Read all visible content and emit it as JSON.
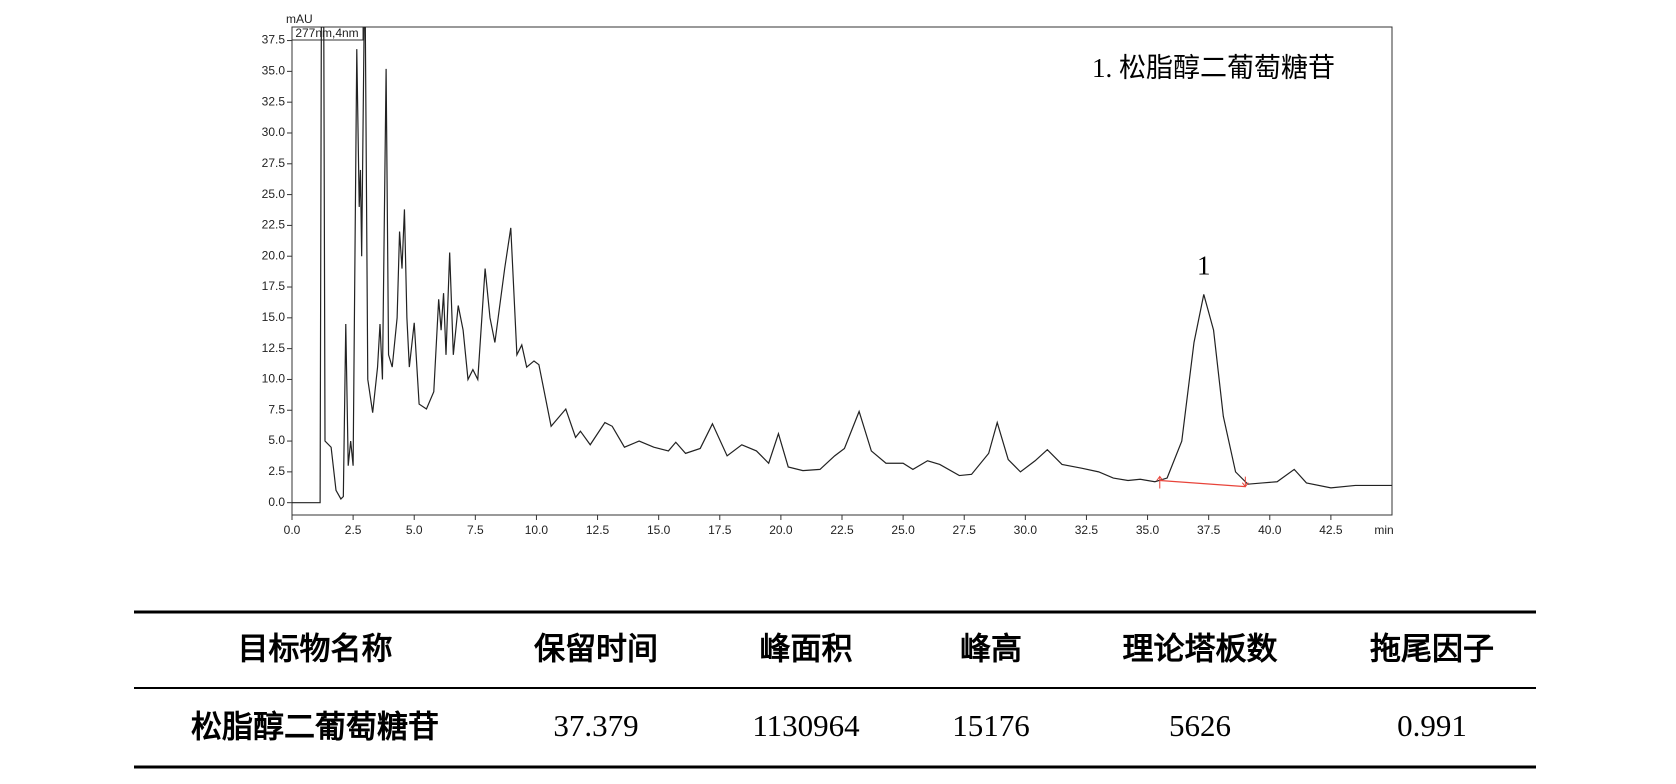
{
  "chart_data": {
    "type": "line",
    "y_label": "mAU",
    "x_label": "min",
    "detector": "277nm,4nm",
    "annotation": "1. 松脂醇二葡萄糖苷",
    "peak_label": "1",
    "peak_label_x": 37.3,
    "peak_label_y": 19.0,
    "color": "#222222",
    "x": [
      0,
      1.15,
      1.2,
      1.3,
      1.35,
      1.6,
      1.8,
      2.0,
      2.1,
      2.2,
      2.3,
      2.4,
      2.5,
      2.65,
      2.75,
      2.8,
      2.85,
      2.95,
      3.0,
      3.1,
      3.3,
      3.5,
      3.6,
      3.7,
      3.85,
      3.95,
      4.1,
      4.3,
      4.4,
      4.5,
      4.6,
      4.7,
      4.8,
      5.0,
      5.2,
      5.5,
      5.8,
      6.0,
      6.1,
      6.2,
      6.3,
      6.45,
      6.6,
      6.8,
      7.0,
      7.2,
      7.4,
      7.6,
      7.9,
      8.1,
      8.3,
      8.7,
      8.95,
      9.2,
      9.4,
      9.6,
      9.9,
      10.1,
      10.6,
      11.2,
      11.6,
      11.8,
      12.2,
      12.8,
      13.1,
      13.6,
      14.2,
      14.8,
      15.4,
      15.7,
      16.1,
      16.7,
      17.2,
      17.8,
      18.4,
      19.0,
      19.5,
      19.9,
      20.3,
      20.9,
      21.6,
      22.2,
      22.6,
      23.2,
      23.7,
      24.3,
      25.0,
      25.4,
      26.0,
      26.5,
      27.3,
      27.8,
      28.5,
      28.85,
      29.3,
      29.8,
      30.4,
      30.9,
      31.5,
      32.3,
      33.0,
      33.6,
      34.2,
      34.7,
      35.3,
      35.8,
      36.4,
      36.9,
      37.3,
      37.7,
      38.1,
      38.6,
      39.1,
      39.7,
      40.3,
      41.0,
      41.5,
      42.5,
      43.5,
      45
    ],
    "values": [
      0.0,
      0.0,
      38.6,
      38.6,
      5,
      4.5,
      1.0,
      0.3,
      0.5,
      14.5,
      3,
      5,
      3,
      36.8,
      24,
      27,
      20,
      38.6,
      38.6,
      10,
      7.3,
      11,
      14.5,
      10,
      35.2,
      12,
      11,
      15,
      22,
      19,
      23.8,
      15,
      11,
      14.6,
      8,
      7.6,
      9,
      16.5,
      14,
      17,
      12,
      20.3,
      12,
      16,
      14,
      10,
      10.8,
      10,
      19,
      15,
      13,
      19,
      22.3,
      12,
      12.8,
      11,
      11.5,
      11.2,
      6.2,
      7.6,
      5.3,
      5.8,
      4.7,
      6.5,
      6.2,
      4.5,
      5.0,
      4.5,
      4.2,
      4.9,
      4.0,
      4.4,
      6.4,
      3.8,
      4.7,
      4.2,
      3.2,
      5.6,
      2.9,
      2.6,
      2.7,
      3.8,
      4.4,
      7.4,
      4.2,
      3.2,
      3.2,
      2.7,
      3.4,
      3.1,
      2.2,
      2.3,
      4,
      6.5,
      3.5,
      2.5,
      3.4,
      4.3,
      3.1,
      2.8,
      2.5,
      2.0,
      1.8,
      1.9,
      1.7,
      2.0,
      5,
      13,
      16.9,
      14,
      7,
      2.5,
      1.5,
      1.6,
      1.7,
      2.7,
      1.6,
      1.2,
      1.4,
      1.4
    ],
    "baseline": {
      "x": [
        35.5,
        39.0
      ],
      "y": [
        1.8,
        1.3
      ],
      "color": "#e8443a"
    },
    "xlim": [
      0,
      45
    ],
    "ylim": [
      -1,
      38.6
    ],
    "xticks": [
      {
        "value": 0,
        "label": "0.0"
      },
      2.5,
      {
        "value": 5,
        "label": "5.0"
      },
      7.5,
      {
        "value": 10,
        "label": "10.0"
      },
      12.5,
      {
        "value": 15,
        "label": "15.0"
      },
      17.5,
      {
        "value": 20,
        "label": "20.0"
      },
      22.5,
      {
        "value": 25,
        "label": "25.0"
      },
      27.5,
      {
        "value": 30,
        "label": "30.0"
      },
      32.5,
      {
        "value": 35,
        "label": "35.0"
      },
      37.5,
      {
        "value": 40,
        "label": "40.0"
      },
      42.5
    ],
    "yticks": [
      {
        "value": 0,
        "label": "0.0"
      },
      2.5,
      {
        "value": 5,
        "label": "5.0"
      },
      7.5,
      {
        "value": 10,
        "label": "10.0"
      },
      12.5,
      {
        "value": 15,
        "label": "15.0"
      },
      17.5,
      {
        "value": 20,
        "label": "20.0"
      },
      22.5,
      {
        "value": 25,
        "label": "25.0"
      },
      27.5,
      {
        "value": 30,
        "label": "30.0"
      },
      32.5,
      {
        "value": 35,
        "label": "35.0"
      },
      37.5
    ],
    "grid": false
  },
  "table": {
    "header": [
      "目标物名称",
      "保留时间",
      "峰面积",
      "峰高",
      "理论塔板数",
      "拖尾因子"
    ],
    "rows": [
      [
        "松脂醇二葡萄糖苷",
        "37.379",
        "1130964",
        "15176",
        "5626",
        "0.991"
      ]
    ]
  }
}
